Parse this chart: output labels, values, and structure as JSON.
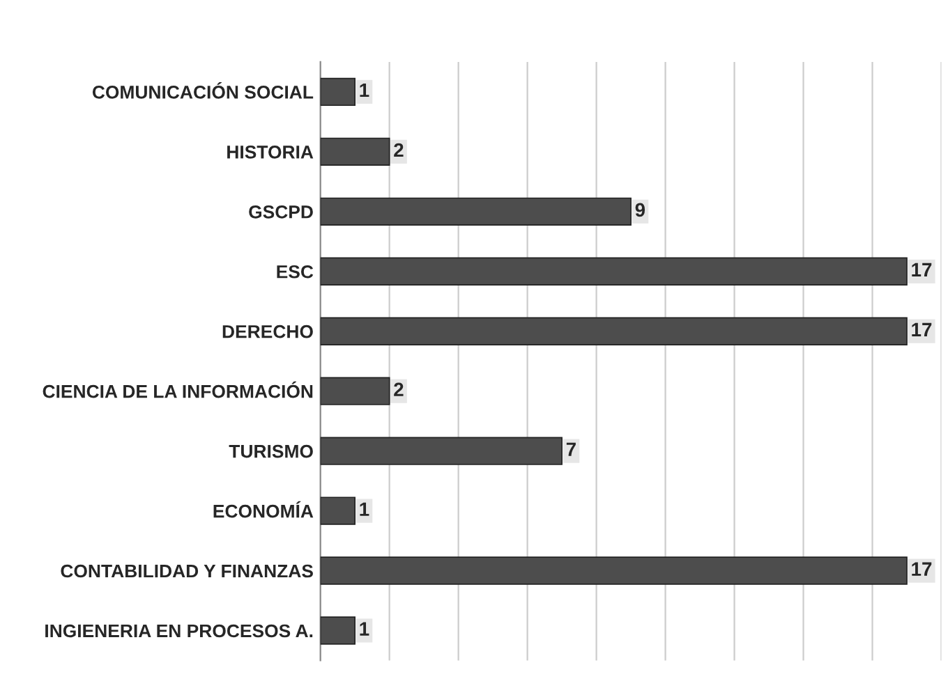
{
  "chart_data": {
    "type": "bar",
    "orientation": "horizontal",
    "categories": [
      "COMUNICACIÓN SOCIAL",
      "HISTORIA",
      "GSCPD",
      "ESC",
      "DERECHO",
      "CIENCIA DE LA INFORMACIÓN",
      "TURISMO",
      "ECONOMÍA",
      "CONTABILIDAD Y FINANZAS",
      "INGIENERIA EN PROCESOS A."
    ],
    "values": [
      1,
      2,
      9,
      17,
      17,
      2,
      7,
      1,
      17,
      1
    ],
    "color": "#4d4d4d",
    "data_labels": true,
    "xlim": [
      0,
      18
    ],
    "xticks": [
      {
        "value": 2,
        "label": null
      },
      {
        "value": 4,
        "label": null
      },
      {
        "value": 6,
        "label": null
      },
      {
        "value": 8,
        "label": null
      },
      {
        "value": 10,
        "label": null
      },
      {
        "value": 12,
        "label": null
      },
      {
        "value": 14,
        "label": null
      },
      {
        "value": 16,
        "label": null
      },
      {
        "value": 18,
        "label": null
      }
    ],
    "grid": "x"
  }
}
